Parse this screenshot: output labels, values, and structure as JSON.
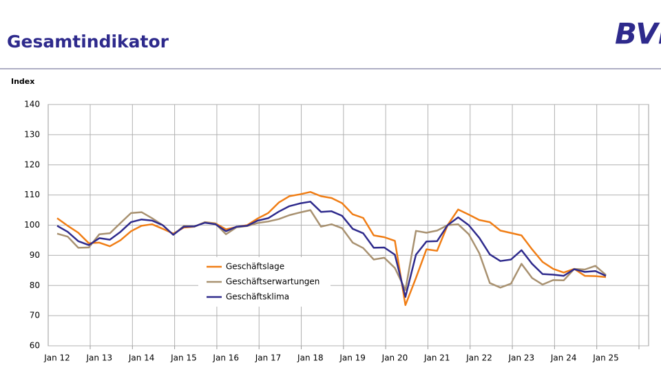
{
  "header": {
    "title": "Gesamtindikator",
    "logo": "BVL"
  },
  "chart_data": {
    "type": "line",
    "y_label": "Index",
    "categories": [
      "Jan 12",
      null,
      null,
      null,
      "Jan 13",
      null,
      null,
      null,
      "Jan 14",
      null,
      null,
      null,
      "Jan 15",
      null,
      null,
      null,
      "Jan 16",
      null,
      null,
      null,
      "Jan 17",
      null,
      null,
      null,
      "Jan 18",
      null,
      null,
      null,
      "Jan 19",
      null,
      null,
      null,
      "Jan 20",
      null,
      null,
      null,
      "Jan 21",
      null,
      null,
      null,
      "Jan 22",
      null,
      null,
      null,
      "Jan 23",
      null,
      null,
      null,
      "Jan 24",
      null,
      null,
      null,
      "Jan 25"
    ],
    "series": [
      {
        "name": "Geschäftslage",
        "color": "#f07d14",
        "values": [
          102.3,
          99.8,
          97.5,
          94,
          94.2,
          93,
          95,
          98,
          99.8,
          100.3,
          98.8,
          97.2,
          99.2,
          99.5,
          101,
          100.6,
          98.6,
          99.4,
          100,
          102.2,
          104,
          107.5,
          109.6,
          110.2,
          111,
          109.6,
          109,
          107.3,
          103.6,
          102.4,
          96.6,
          96,
          94.8,
          73.5,
          82.5,
          92,
          91.5,
          100,
          105.2,
          103.5,
          101.7,
          101,
          98.2,
          97.4,
          96.6,
          92,
          87.8,
          85.5,
          84.3,
          85.5,
          83.2,
          83.1,
          82.8
        ]
      },
      {
        "name": "Geschäftserwartungen",
        "color": "#a89170",
        "values": [
          97.2,
          96.2,
          92.5,
          92.6,
          97,
          97.3,
          100.7,
          104,
          104.3,
          102.3,
          100,
          96.8,
          99.7,
          99.5,
          101,
          100.5,
          97,
          99.3,
          99.7,
          100.7,
          101.2,
          102,
          103.3,
          104.2,
          105,
          99.5,
          100.3,
          99,
          94.2,
          92.4,
          88.6,
          89.2,
          85.8,
          78.5,
          98.1,
          97.5,
          98.2,
          100,
          100.3,
          97,
          90.7,
          80.8,
          79.3,
          80.6,
          87.2,
          82.5,
          80.3,
          81.8,
          81.7,
          85.5,
          85.3,
          86.5,
          83.5
        ]
      },
      {
        "name": "Geschäftsklima",
        "color": "#2e2a8c",
        "values": [
          99.8,
          97.8,
          94.7,
          93.4,
          95.7,
          95.2,
          97.8,
          101,
          101.9,
          101.5,
          100,
          96.8,
          99.5,
          99.6,
          100.8,
          100.3,
          98,
          99.5,
          99.8,
          101.5,
          102.3,
          104.5,
          106.3,
          107.2,
          107.8,
          104.4,
          104.6,
          103.1,
          98.8,
          97.3,
          92.5,
          92.6,
          90.2,
          76.2,
          90.2,
          94.6,
          94.7,
          100,
          102.6,
          100,
          95.8,
          90.3,
          88.1,
          88.6,
          91.7,
          87.2,
          83.8,
          83.6,
          83.2,
          85.4,
          84.5,
          84.8,
          83.2
        ]
      }
    ],
    "ylim": [
      60,
      140
    ],
    "yticks": [
      60,
      70,
      80,
      90,
      100,
      110,
      120,
      130,
      140
    ],
    "grid": true
  }
}
